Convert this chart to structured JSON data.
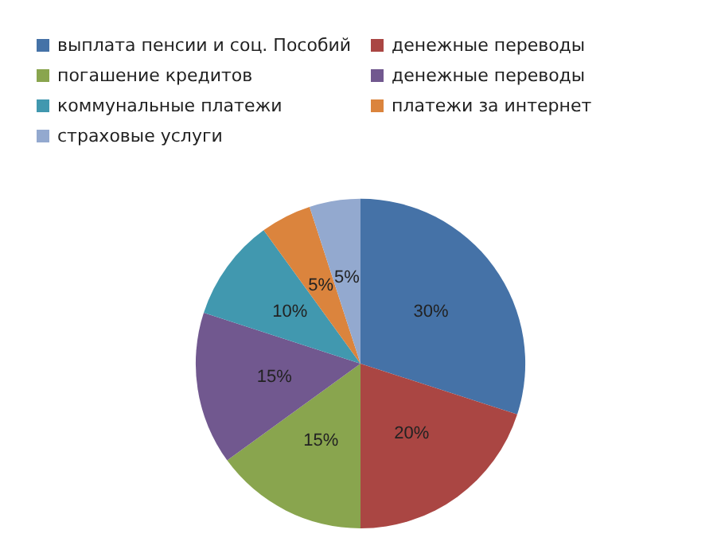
{
  "chart_data": {
    "type": "pie",
    "categories": [
      "выплата пенсии и соц. Пособий",
      "денежные переводы",
      "погашение кредитов",
      "денежные переводы",
      "коммунальные платежи",
      "платежи за интернет",
      "страховые услуги"
    ],
    "values": [
      30,
      20,
      15,
      15,
      10,
      5,
      5
    ],
    "value_labels": [
      "30%",
      "20%",
      "15%",
      "15%",
      "10%",
      "5%",
      "5%"
    ],
    "colors": [
      "#4572a7",
      "#aa4643",
      "#89a54e",
      "#71588f",
      "#4198af",
      "#db843d",
      "#93a9cf"
    ],
    "legend": "top"
  }
}
